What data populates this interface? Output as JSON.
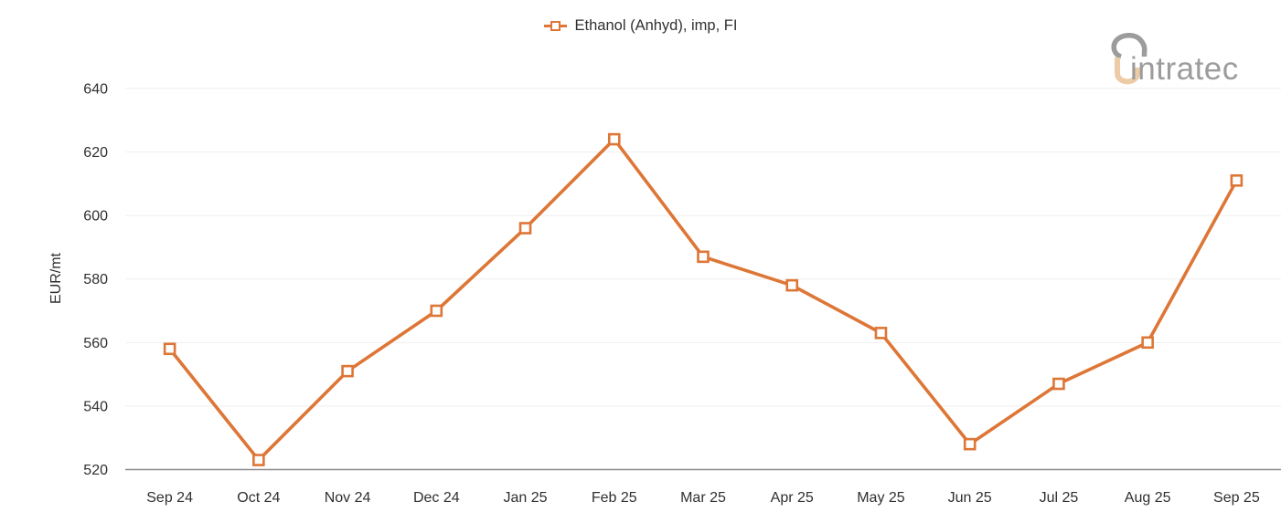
{
  "legend": {
    "items": [
      {
        "label": "Ethanol (Anhyd), imp, FI",
        "color": "#DD7636"
      }
    ]
  },
  "logo": {
    "text": "intratec"
  },
  "colors": {
    "accent": "#DD7636",
    "grid": "#F1F1F1",
    "axis": "#8C8C8C",
    "text": "#303030",
    "logo_gray": "#9C9C9C",
    "logo_peach": "#EDCBA6"
  },
  "chart_data": {
    "type": "line",
    "title": "",
    "xlabel": "",
    "ylabel": "EUR/mt",
    "categories": [
      "Sep 24",
      "Oct 24",
      "Nov 24",
      "Dec 24",
      "Jan 25",
      "Feb 25",
      "Mar 25",
      "Apr 25",
      "May 25",
      "Jun 25",
      "Jul 25",
      "Aug 25",
      "Sep 25"
    ],
    "series": [
      {
        "name": "Ethanol (Anhyd), imp, FI",
        "color": "#DD7636",
        "marker": "open-square",
        "values": [
          558,
          523,
          551,
          570,
          596,
          624,
          587,
          578,
          563,
          528,
          547,
          560,
          611
        ]
      }
    ],
    "ylim": [
      520,
      648
    ],
    "yticks": [
      520,
      540,
      560,
      580,
      600,
      620,
      640
    ],
    "grid": true,
    "legend_position": "top-center"
  }
}
